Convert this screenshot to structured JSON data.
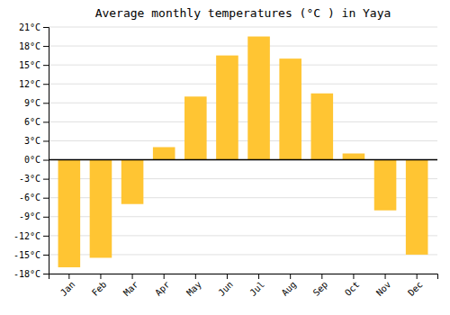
{
  "chart_data": {
    "type": "bar",
    "title": "Average monthly temperatures (°C ) in Yaya",
    "categories": [
      "Jan",
      "Feb",
      "Mar",
      "Apr",
      "May",
      "Jun",
      "Jul",
      "Aug",
      "Sep",
      "Oct",
      "Nov",
      "Dec"
    ],
    "values": [
      -17,
      -15.5,
      -7,
      2,
      10,
      16.5,
      19.5,
      16,
      10.5,
      1,
      -8,
      -15
    ],
    "color": "#FFC533",
    "ylim": [
      -18,
      21
    ],
    "yticks": [
      {
        "value": -18,
        "label": "-18°C"
      },
      {
        "value": -15,
        "label": "-15°C"
      },
      {
        "value": -12,
        "label": "-12°C"
      },
      {
        "value": -9,
        "label": "-9°C"
      },
      {
        "value": -6,
        "label": "-6°C"
      },
      {
        "value": -3,
        "label": "-3°C"
      },
      {
        "value": 0,
        "label": "0°C"
      },
      {
        "value": 3,
        "label": "3°C"
      },
      {
        "value": 6,
        "label": "6°C"
      },
      {
        "value": 9,
        "label": "9°C"
      },
      {
        "value": 12,
        "label": "12°C"
      },
      {
        "value": 15,
        "label": "15°C"
      },
      {
        "value": 18,
        "label": "18°C"
      },
      {
        "value": 21,
        "label": "21°C"
      }
    ],
    "grid": true
  }
}
